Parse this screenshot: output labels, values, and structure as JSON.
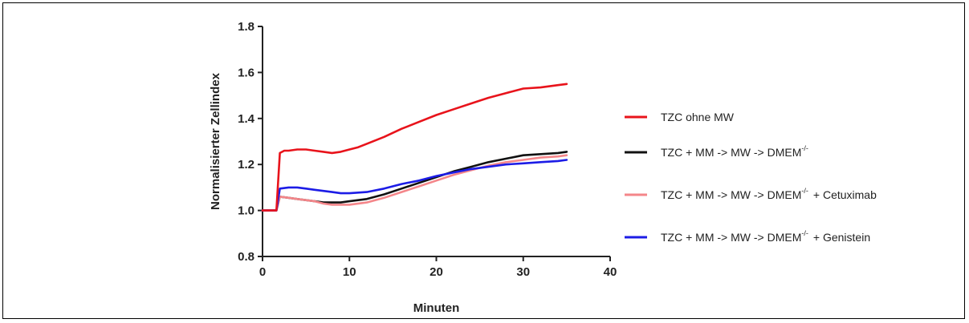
{
  "chart_data": {
    "type": "line",
    "xlabel": "Minuten",
    "ylabel": "Normalisierter Zellindex",
    "xlim": [
      0,
      40
    ],
    "ylim": [
      0.8,
      1.8
    ],
    "xticks": [
      "0",
      "10",
      "20",
      "30",
      "40"
    ],
    "yticks": [
      "0.8",
      "1.0",
      "1.2",
      "1.4",
      "1.6",
      "1.8"
    ],
    "grid": false,
    "legend_position": "right",
    "series": [
      {
        "name": "TZC ohne MW",
        "color": "#e8131b",
        "x": [
          0,
          1,
          1.6,
          2,
          2.5,
          3,
          4,
          5,
          6,
          7,
          8,
          9,
          10,
          11,
          12,
          14,
          16,
          18,
          20,
          22,
          24,
          26,
          28,
          30,
          32,
          34,
          35
        ],
        "y": [
          1.0,
          1.0,
          1.0,
          1.25,
          1.26,
          1.26,
          1.265,
          1.265,
          1.26,
          1.255,
          1.25,
          1.255,
          1.265,
          1.275,
          1.29,
          1.32,
          1.355,
          1.385,
          1.415,
          1.44,
          1.465,
          1.49,
          1.51,
          1.53,
          1.535,
          1.545,
          1.55
        ]
      },
      {
        "name": "TZC + MM -> MW -> DMEM",
        "name_sup": "-/-",
        "color": "#111111",
        "x": [
          0,
          1,
          1.6,
          2,
          3,
          4,
          5,
          6,
          7,
          8,
          9,
          10,
          12,
          14,
          16,
          18,
          20,
          22,
          24,
          26,
          28,
          30,
          32,
          34,
          35
        ],
        "y": [
          1.0,
          1.0,
          1.0,
          1.06,
          1.055,
          1.05,
          1.045,
          1.04,
          1.035,
          1.035,
          1.035,
          1.04,
          1.05,
          1.07,
          1.095,
          1.12,
          1.145,
          1.17,
          1.19,
          1.21,
          1.225,
          1.24,
          1.245,
          1.25,
          1.255
        ]
      },
      {
        "name": "TZC + MM -> MW -> DMEM",
        "name_sup": "-/-",
        "name_suffix": "+ Cetuximab",
        "color": "#f4868a",
        "x": [
          0,
          1,
          1.6,
          2,
          3,
          4,
          5,
          6,
          7,
          8,
          9,
          10,
          12,
          14,
          16,
          18,
          20,
          22,
          24,
          26,
          28,
          30,
          32,
          34,
          35
        ],
        "y": [
          1.0,
          1.0,
          1.0,
          1.06,
          1.055,
          1.05,
          1.045,
          1.04,
          1.03,
          1.025,
          1.025,
          1.025,
          1.035,
          1.055,
          1.08,
          1.105,
          1.13,
          1.155,
          1.175,
          1.195,
          1.21,
          1.22,
          1.23,
          1.235,
          1.24
        ]
      },
      {
        "name": "TZC + MM -> MW -> DMEM",
        "name_sup": "-/-",
        "name_suffix": "+ Genistein",
        "color": "#1c1ce6",
        "x": [
          0,
          1,
          1.6,
          2,
          3,
          4,
          5,
          6,
          7,
          8,
          9,
          10,
          12,
          14,
          16,
          18,
          20,
          22,
          24,
          26,
          28,
          30,
          32,
          34,
          35
        ],
        "y": [
          1.0,
          1.0,
          1.0,
          1.095,
          1.1,
          1.1,
          1.095,
          1.09,
          1.085,
          1.08,
          1.075,
          1.075,
          1.08,
          1.095,
          1.115,
          1.13,
          1.15,
          1.165,
          1.18,
          1.19,
          1.2,
          1.205,
          1.21,
          1.215,
          1.22
        ]
      }
    ]
  }
}
